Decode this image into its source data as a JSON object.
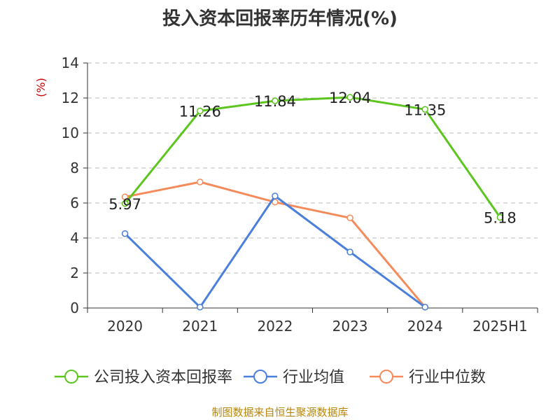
{
  "title": "投入资本回报率历年情况(%)",
  "source": "制图数据来自恒生聚源数据库",
  "colors": {
    "axis": "#333333",
    "grid": "#bbbbbb",
    "unit": "#cc0000",
    "source": "#b8860b"
  },
  "chart_data": {
    "type": "line",
    "categories": [
      "2020",
      "2021",
      "2022",
      "2023",
      "2024",
      "2025H1"
    ],
    "ylabel": "(%)",
    "ylim": [
      0,
      14
    ],
    "yticks": [
      "0",
      "2",
      "4",
      "6",
      "8",
      "10",
      "12",
      "14"
    ],
    "grid": "horizontal dashed",
    "legend_position": "bottom",
    "series": [
      {
        "name": "公司投入资本回报率",
        "color": "#5cc61f",
        "values": [
          5.97,
          11.26,
          11.84,
          12.04,
          11.35,
          5.18
        ],
        "labels": [
          "5.97",
          "11.26",
          "11.84",
          "12.04",
          "11.35",
          "5.18"
        ],
        "show_labels": true
      },
      {
        "name": "行业均值",
        "color": "#4a7fdc",
        "values": [
          4.25,
          0.05,
          6.4,
          3.2,
          0.05,
          null
        ],
        "show_labels": false
      },
      {
        "name": "行业中位数",
        "color": "#f58b5b",
        "values": [
          6.35,
          7.2,
          6.05,
          5.15,
          0.05,
          null
        ],
        "show_labels": false
      }
    ]
  }
}
